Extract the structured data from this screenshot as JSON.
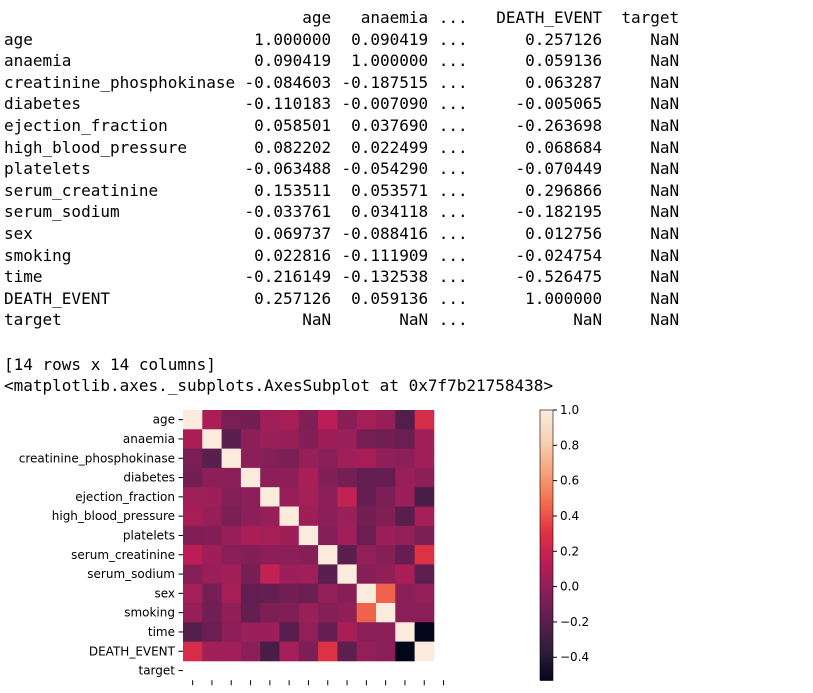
{
  "dataframe": {
    "columns": [
      "",
      "age",
      "anaemia",
      "...",
      "DEATH_EVENT",
      "target"
    ],
    "rows": [
      [
        "age",
        "1.000000",
        "0.090419",
        "...",
        "0.257126",
        "NaN"
      ],
      [
        "anaemia",
        "0.090419",
        "1.000000",
        "...",
        "0.059136",
        "NaN"
      ],
      [
        "creatinine_phosphokinase",
        "-0.084603",
        "-0.187515",
        "...",
        "0.063287",
        "NaN"
      ],
      [
        "diabetes",
        "-0.110183",
        "-0.007090",
        "...",
        "-0.005065",
        "NaN"
      ],
      [
        "ejection_fraction",
        "0.058501",
        "0.037690",
        "...",
        "-0.263698",
        "NaN"
      ],
      [
        "high_blood_pressure",
        "0.082202",
        "0.022499",
        "...",
        "0.068684",
        "NaN"
      ],
      [
        "platelets",
        "-0.063488",
        "-0.054290",
        "...",
        "-0.070449",
        "NaN"
      ],
      [
        "serum_creatinine",
        "0.153511",
        "0.053571",
        "...",
        "0.296866",
        "NaN"
      ],
      [
        "serum_sodium",
        "-0.033761",
        "0.034118",
        "...",
        "-0.182195",
        "NaN"
      ],
      [
        "sex",
        "0.069737",
        "-0.088416",
        "...",
        "0.012756",
        "NaN"
      ],
      [
        "smoking",
        "0.022816",
        "-0.111909",
        "...",
        "-0.024754",
        "NaN"
      ],
      [
        "time",
        "-0.216149",
        "-0.132538",
        "...",
        "-0.526475",
        "NaN"
      ],
      [
        "DEATH_EVENT",
        "0.257126",
        "0.059136",
        "...",
        "1.000000",
        "NaN"
      ],
      [
        "target",
        "NaN",
        "NaN",
        "...",
        "NaN",
        "NaN"
      ]
    ],
    "shape_note": "[14 rows x 14 columns]",
    "repr_note": "<matplotlib.axes._subplots.AxesSubplot at 0x7f7b21758438>"
  },
  "chart_data": {
    "type": "heatmap",
    "title": "",
    "labels": [
      "age",
      "anaemia",
      "creatinine_phosphokinase",
      "diabetes",
      "ejection_fraction",
      "high_blood_pressure",
      "platelets",
      "serum_creatinine",
      "serum_sodium",
      "sex",
      "smoking",
      "time",
      "DEATH_EVENT",
      "target"
    ],
    "matrix": [
      [
        1.0,
        0.09,
        -0.08,
        -0.1,
        0.06,
        0.08,
        -0.06,
        0.15,
        -0.03,
        0.07,
        0.02,
        -0.22,
        0.26,
        null
      ],
      [
        0.09,
        1.0,
        -0.19,
        -0.01,
        0.04,
        0.02,
        -0.05,
        0.05,
        0.03,
        -0.09,
        -0.11,
        -0.13,
        0.06,
        null
      ],
      [
        -0.08,
        -0.19,
        1.0,
        -0.01,
        -0.04,
        -0.07,
        0.02,
        -0.02,
        0.06,
        0.08,
        0.0,
        -0.01,
        0.06,
        null
      ],
      [
        -0.1,
        -0.01,
        -0.01,
        1.0,
        -0.01,
        -0.01,
        0.09,
        -0.05,
        -0.09,
        -0.16,
        -0.15,
        0.03,
        -0.01,
        null
      ],
      [
        0.06,
        0.04,
        -0.04,
        -0.01,
        1.0,
        0.02,
        0.07,
        -0.01,
        0.18,
        -0.15,
        -0.07,
        0.04,
        -0.26,
        null
      ],
      [
        0.08,
        0.02,
        -0.07,
        -0.01,
        0.02,
        1.0,
        0.05,
        -0.01,
        0.04,
        -0.1,
        -0.06,
        -0.2,
        0.07,
        null
      ],
      [
        -0.06,
        -0.05,
        0.02,
        0.09,
        0.07,
        0.05,
        1.0,
        -0.04,
        0.06,
        -0.13,
        0.03,
        0.01,
        -0.07,
        null
      ],
      [
        0.15,
        0.05,
        -0.02,
        -0.05,
        -0.01,
        -0.01,
        -0.04,
        1.0,
        -0.19,
        0.01,
        -0.03,
        -0.15,
        0.3,
        null
      ],
      [
        -0.03,
        0.03,
        0.06,
        -0.09,
        0.18,
        0.04,
        0.06,
        -0.19,
        1.0,
        -0.03,
        0.0,
        0.09,
        -0.18,
        null
      ],
      [
        0.07,
        -0.09,
        0.08,
        -0.16,
        -0.15,
        -0.1,
        -0.13,
        0.01,
        -0.03,
        1.0,
        0.45,
        -0.02,
        0.01,
        null
      ],
      [
        0.02,
        -0.11,
        0.0,
        -0.15,
        -0.07,
        -0.06,
        0.03,
        -0.03,
        0.0,
        0.45,
        1.0,
        -0.02,
        -0.02,
        null
      ],
      [
        -0.22,
        -0.13,
        -0.01,
        0.03,
        0.04,
        -0.2,
        0.01,
        -0.15,
        0.09,
        -0.02,
        -0.02,
        1.0,
        -0.53,
        null
      ],
      [
        0.26,
        0.06,
        0.06,
        -0.01,
        -0.26,
        0.07,
        -0.07,
        0.3,
        -0.18,
        0.01,
        -0.02,
        -0.53,
        1.0,
        null
      ],
      [
        null,
        null,
        null,
        null,
        null,
        null,
        null,
        null,
        null,
        null,
        null,
        null,
        null,
        null
      ]
    ],
    "colorbar": {
      "vmin": -0.53,
      "vmax": 1.0,
      "ticks": [
        -0.4,
        -0.2,
        0.0,
        0.2,
        0.4,
        0.6,
        0.8,
        1.0
      ],
      "tick_labels": [
        "−0.4",
        "−0.2",
        "0.0",
        "0.2",
        "0.4",
        "0.6",
        "0.8",
        "1.0"
      ]
    },
    "colormap_stops": [
      "#03051a",
      "#2e1e3b",
      "#5a1e4f",
      "#8a1f58",
      "#bb1e57",
      "#e13342",
      "#f3704f",
      "#f6a47c",
      "#f8d0b5",
      "#faebdd"
    ]
  }
}
